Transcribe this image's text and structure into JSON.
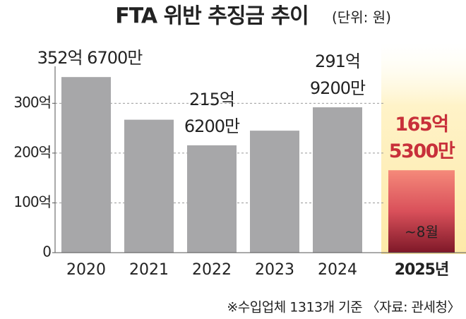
{
  "chart_data": {
    "type": "bar",
    "title": "FTA 위반 추징금 추이",
    "subtitle": "(단위: 원)",
    "categories": [
      "2020",
      "2021",
      "2022",
      "2023",
      "2024",
      "2025년"
    ],
    "values": [
      352.67,
      267,
      215.62,
      245,
      291.92,
      165.53
    ],
    "value_labels": [
      "352억 6700만",
      null,
      "215억 6200만",
      null,
      "291억 9200만",
      "165억 5300만"
    ],
    "color": "#a7a7a9",
    "highlight_color": "#c8303a",
    "annotation": "~8월",
    "ylim": [
      0,
      360
    ],
    "yticks": [
      0,
      {
        "value": 100,
        "label": "100억"
      },
      {
        "value": 200,
        "label": "200억"
      },
      {
        "value": 300,
        "label": "300억"
      }
    ],
    "grid": true,
    "note": "※수입업체 1313개 기준 〈자료: 관세청〉"
  }
}
